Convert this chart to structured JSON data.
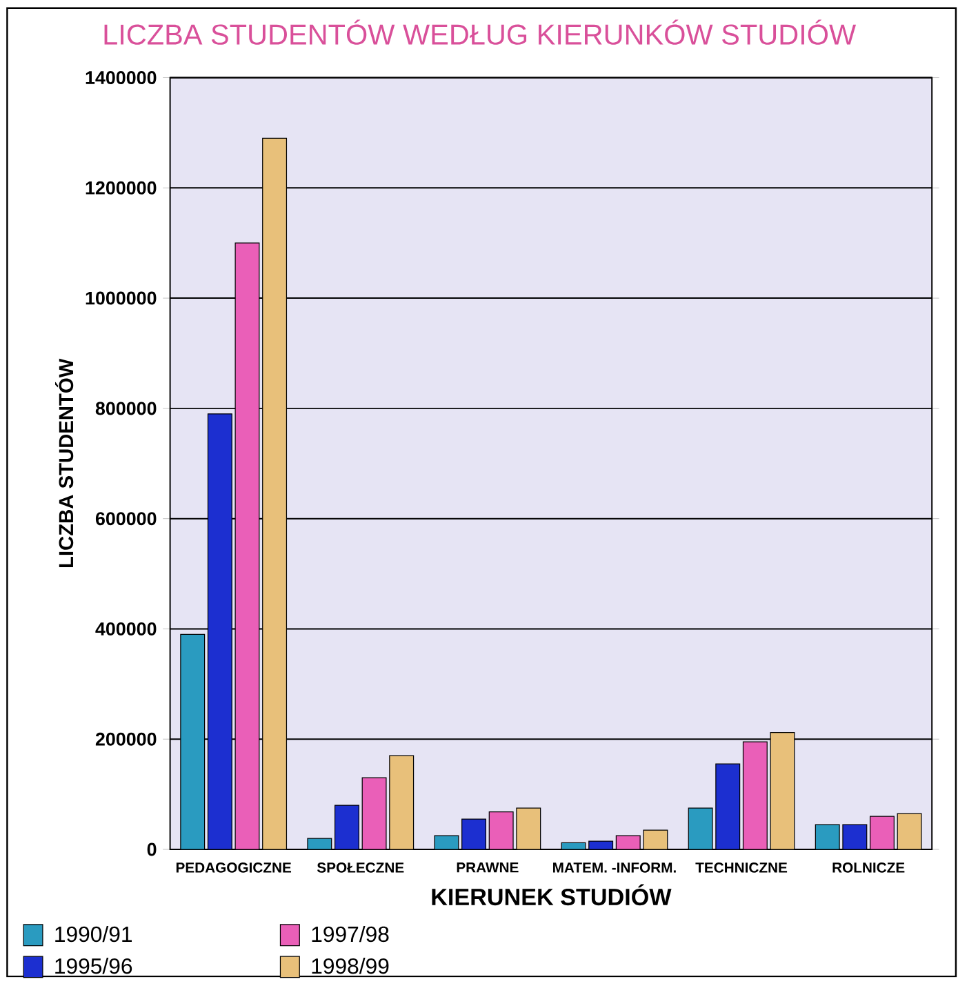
{
  "chart_data": {
    "type": "bar",
    "title": "LICZBA STUDENTÓW WEDŁUG KIERUNKÓW STUDIÓW",
    "xlabel": "KIERUNEK STUDIÓW",
    "ylabel": "LICZBA STUDENTÓW",
    "categories": [
      "PEDAGOGICZNE",
      "SPOŁECZNE",
      "PRAWNE",
      "MATEM. -INFORM.",
      "TECHNICZNE",
      "ROLNICZE"
    ],
    "series": [
      {
        "name": "1990/91",
        "color": "#2a9bc0",
        "values": [
          390000,
          20000,
          25000,
          12000,
          75000,
          45000
        ]
      },
      {
        "name": "1995/96",
        "color": "#1c2fd0",
        "values": [
          790000,
          80000,
          55000,
          15000,
          155000,
          45000
        ]
      },
      {
        "name": "1997/98",
        "color": "#ea5fb8",
        "values": [
          1100000,
          130000,
          68000,
          25000,
          195000,
          60000
        ]
      },
      {
        "name": "1998/99",
        "color": "#e8c07a",
        "values": [
          1290000,
          170000,
          75000,
          35000,
          212000,
          65000
        ]
      }
    ],
    "ylim": [
      0,
      1400000
    ],
    "yticks": [
      0,
      200000,
      400000,
      600000,
      800000,
      1000000,
      1200000,
      1400000
    ],
    "grid": "y",
    "legend": "bottom left"
  }
}
